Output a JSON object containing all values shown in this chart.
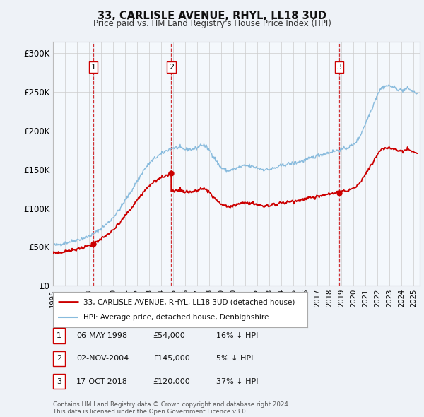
{
  "title": "33, CARLISLE AVENUE, RHYL, LL18 3UD",
  "subtitle": "Price paid vs. HM Land Registry's House Price Index (HPI)",
  "ylabel_ticks": [
    "£0",
    "£50K",
    "£100K",
    "£150K",
    "£200K",
    "£250K",
    "£300K"
  ],
  "ytick_values": [
    0,
    50000,
    100000,
    150000,
    200000,
    250000,
    300000
  ],
  "ylim": [
    0,
    315000
  ],
  "xlim_start": 1995.0,
  "xlim_end": 2025.5,
  "sale_dates": [
    1998.35,
    2004.83,
    2018.79
  ],
  "sale_prices": [
    54000,
    145000,
    120000
  ],
  "sale_labels": [
    "1",
    "2",
    "3"
  ],
  "sale_info": [
    {
      "label": "1",
      "date": "06-MAY-1998",
      "price": "£54,000",
      "pct": "16% ↓ HPI"
    },
    {
      "label": "2",
      "date": "02-NOV-2004",
      "price": "£145,000",
      "pct": "5% ↓ HPI"
    },
    {
      "label": "3",
      "date": "17-OCT-2018",
      "price": "£120,000",
      "pct": "37% ↓ HPI"
    }
  ],
  "legend_line1": "33, CARLISLE AVENUE, RHYL, LL18 3UD (detached house)",
  "legend_line2": "HPI: Average price, detached house, Denbighshire",
  "footnote": "Contains HM Land Registry data © Crown copyright and database right 2024.\nThis data is licensed under the Open Government Licence v3.0.",
  "background_color": "#eef2f7",
  "plot_bg_color": "#ffffff",
  "grid_color": "#cccccc",
  "vline_color": "#cc0000",
  "sale_marker_color": "#cc0000",
  "hpi_color": "#88bbdd",
  "prop_color": "#cc0000",
  "hpi_nodes_x": [
    1995.0,
    1995.5,
    1996.0,
    1996.5,
    1997.0,
    1997.5,
    1998.0,
    1998.5,
    1999.0,
    1999.5,
    2000.0,
    2000.5,
    2001.0,
    2001.5,
    2002.0,
    2002.5,
    2003.0,
    2003.5,
    2004.0,
    2004.5,
    2005.0,
    2005.5,
    2006.0,
    2006.5,
    2007.0,
    2007.3,
    2007.7,
    2008.0,
    2008.3,
    2008.7,
    2009.0,
    2009.5,
    2010.0,
    2010.5,
    2011.0,
    2011.5,
    2012.0,
    2012.5,
    2013.0,
    2013.5,
    2014.0,
    2014.5,
    2015.0,
    2015.5,
    2016.0,
    2016.5,
    2017.0,
    2017.5,
    2018.0,
    2018.5,
    2019.0,
    2019.5,
    2020.0,
    2020.5,
    2021.0,
    2021.5,
    2022.0,
    2022.3,
    2022.7,
    2023.0,
    2023.5,
    2024.0,
    2024.5,
    2025.0,
    2025.3
  ],
  "hpi_nodes_y": [
    52000,
    53000,
    55000,
    57000,
    59000,
    61000,
    64000,
    68000,
    74000,
    80000,
    88000,
    98000,
    110000,
    122000,
    135000,
    148000,
    158000,
    165000,
    170000,
    175000,
    178000,
    178000,
    176000,
    176000,
    178000,
    182000,
    180000,
    175000,
    168000,
    158000,
    152000,
    148000,
    150000,
    153000,
    155000,
    154000,
    152000,
    150000,
    150000,
    152000,
    155000,
    157000,
    158000,
    160000,
    162000,
    165000,
    168000,
    170000,
    172000,
    174000,
    176000,
    178000,
    182000,
    192000,
    210000,
    228000,
    248000,
    255000,
    258000,
    258000,
    255000,
    252000,
    255000,
    250000,
    248000
  ]
}
